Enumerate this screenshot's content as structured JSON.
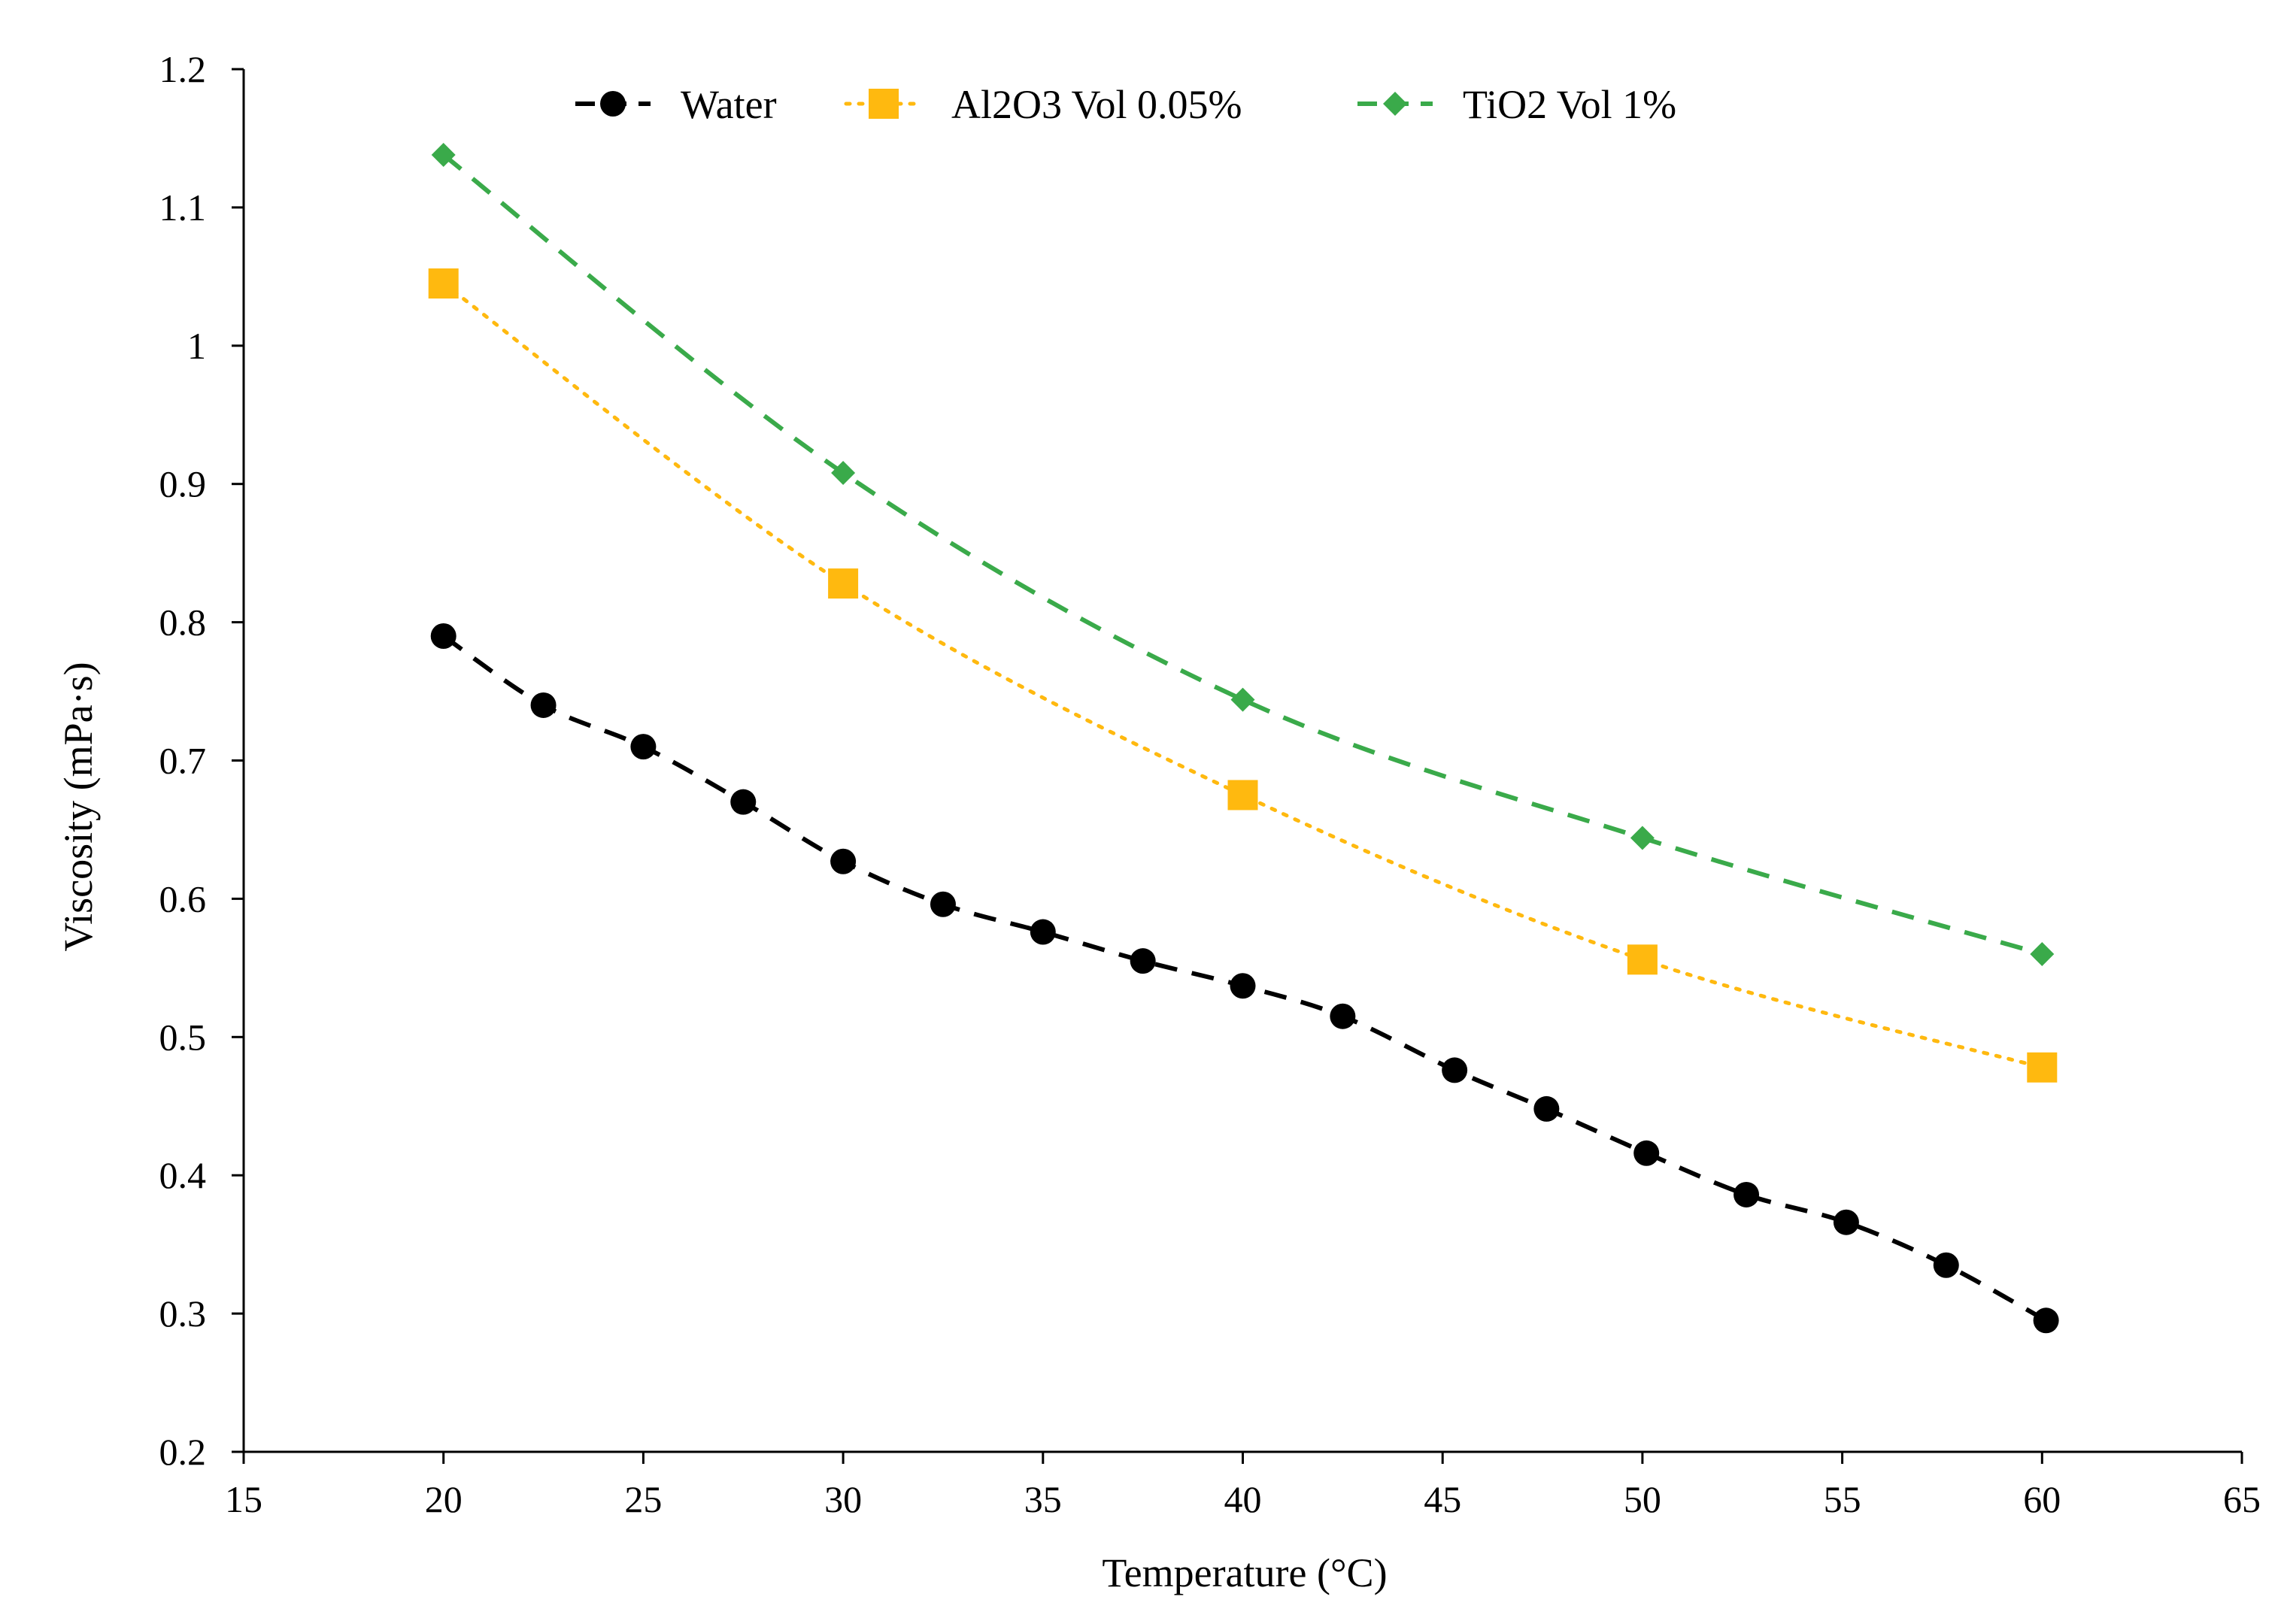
{
  "chart_data": {
    "type": "line",
    "title": "",
    "xlabel": "Temperature  (°C)",
    "ylabel": "Viscosity (mPa·s)",
    "xlim": [
      15,
      65
    ],
    "ylim": [
      0.2,
      1.2
    ],
    "xticks": [
      15,
      20,
      25,
      30,
      35,
      40,
      45,
      50,
      55,
      60,
      65
    ],
    "yticks": [
      0.2,
      0.3,
      0.4,
      0.5,
      0.6,
      0.7,
      0.8,
      0.9,
      1.0,
      1.1,
      1.2
    ],
    "xtick_labels": [
      "15",
      "20",
      "25",
      "30",
      "35",
      "40",
      "45",
      "50",
      "55",
      "60",
      "65"
    ],
    "ytick_labels": [
      "0.2",
      "0.3",
      "0.4",
      "0.5",
      "0.6",
      "0.7",
      "0.8",
      "0.9",
      "1",
      "1.1",
      "1.2"
    ],
    "grid": false,
    "legend_position": "top-center",
    "series": [
      {
        "name": "Water",
        "color": "#000000",
        "marker": "circle",
        "line_style": "dashed",
        "x": [
          20,
          22.5,
          25,
          27.5,
          30,
          32.5,
          35,
          37.5,
          40,
          42.5,
          45.3,
          47.6,
          50.1,
          52.6,
          55.1,
          57.6,
          60.1
        ],
        "y": [
          0.79,
          0.74,
          0.71,
          0.67,
          0.627,
          0.596,
          0.576,
          0.555,
          0.537,
          0.515,
          0.476,
          0.448,
          0.416,
          0.386,
          0.366,
          0.335,
          0.295
        ]
      },
      {
        "name": "Al2O3 Vol 0.05%",
        "color": "#FFB90F",
        "marker": "square",
        "line_style": "dotted",
        "x": [
          20,
          30,
          40,
          50,
          60
        ],
        "y": [
          1.045,
          0.828,
          0.675,
          0.556,
          0.478
        ]
      },
      {
        "name": "TiO2 Vol 1%",
        "color": "#3AAA4A",
        "marker": "diamond",
        "line_style": "dashed",
        "x": [
          20,
          30,
          40,
          50,
          60
        ],
        "y": [
          1.138,
          0.908,
          0.744,
          0.644,
          0.56
        ]
      }
    ]
  }
}
